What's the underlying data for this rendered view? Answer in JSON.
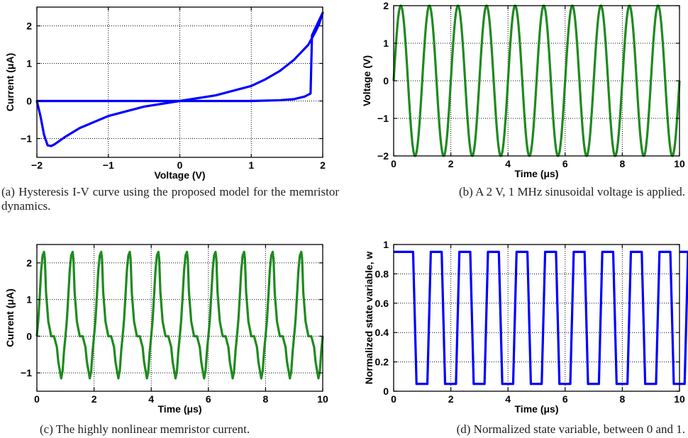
{
  "figure": {
    "captions": {
      "a": "(a) Hysteresis I-V curve using the proposed model for the memristor dynamics.",
      "b": "(b) A 2 V, 1 MHz sinusoidal voltage is applied.",
      "c": "(c) The highly nonlinear memristor current.",
      "d": "(d) Normalized state variable, between 0 and 1."
    }
  },
  "chart_data": [
    {
      "id": "a",
      "type": "line",
      "xlabel": "Voltage (V)",
      "ylabel": "Current (μA)",
      "xlim": [
        -2,
        2
      ],
      "ylim": [
        -1.5,
        2.5
      ],
      "xticks": [
        -2,
        -1,
        0,
        1,
        2
      ],
      "xtick_labels": [
        "−2",
        "−1",
        "0",
        "1",
        "2"
      ],
      "yticks": [
        -1,
        0,
        1,
        2
      ],
      "ytick_labels": [
        "−1",
        "0",
        "1",
        "2"
      ],
      "grid": true,
      "series_color": "#0000ff",
      "series": [
        {
          "x": [
            0,
            0.5,
            1.0,
            1.4,
            1.6,
            1.75,
            1.8,
            1.83,
            1.85,
            1.9,
            1.95,
            2.0,
            1.95,
            1.9,
            1.8,
            1.6,
            1.4,
            1.2,
            1.0,
            0.5,
            0,
            -0.5,
            -1.0,
            -1.4,
            -1.6,
            -1.75,
            -1.8,
            -1.85,
            -1.9,
            -1.95,
            -2.0,
            -1.9,
            -1.8,
            -1.5,
            -1.0,
            -0.5,
            0
          ],
          "y": [
            0,
            0.0,
            0.0,
            0.02,
            0.05,
            0.12,
            0.17,
            0.2,
            1.75,
            1.95,
            2.15,
            2.35,
            2.05,
            1.85,
            1.5,
            1.1,
            0.8,
            0.58,
            0.4,
            0.15,
            0,
            -0.15,
            -0.4,
            -0.72,
            -0.95,
            -1.15,
            -1.2,
            -1.18,
            -0.9,
            -0.4,
            0,
            0,
            0,
            0,
            0,
            0,
            0
          ]
        }
      ]
    },
    {
      "id": "b",
      "type": "line",
      "xlabel": "Time (μs)",
      "ylabel": "Voltage (V)",
      "xlim": [
        0,
        10
      ],
      "ylim": [
        -2,
        2
      ],
      "xticks": [
        0,
        2,
        4,
        6,
        8,
        10
      ],
      "xtick_labels": [
        "0",
        "2",
        "4",
        "6",
        "8",
        "10"
      ],
      "yticks": [
        -2,
        -1,
        0,
        1,
        2
      ],
      "ytick_labels": [
        "−2",
        "−1",
        "0",
        "1",
        "2"
      ],
      "grid": true,
      "series_color": "#1f8a1f",
      "series": [
        {
          "function": "sine",
          "amplitude": 2,
          "frequency_MHz": 1,
          "x_range": [
            0,
            10
          ]
        }
      ]
    },
    {
      "id": "c",
      "type": "line",
      "xlabel": "Time (μs)",
      "ylabel": "Current (μA)",
      "xlim": [
        0,
        10
      ],
      "ylim": [
        -1.5,
        2.5
      ],
      "xticks": [
        0,
        2,
        4,
        6,
        8,
        10
      ],
      "xtick_labels": [
        "0",
        "2",
        "4",
        "6",
        "8",
        "10"
      ],
      "yticks": [
        -1,
        0,
        1,
        2
      ],
      "ytick_labels": [
        "−1",
        "0",
        "1",
        "2"
      ],
      "grid": true,
      "series_color": "#1f8a1f",
      "series": [
        {
          "period_x": [
            0,
            0.05,
            0.1,
            0.15,
            0.2,
            0.25,
            0.28,
            0.32,
            0.4,
            0.5,
            0.6,
            0.7,
            0.75,
            0.85,
            0.9,
            0.95,
            1.0
          ],
          "period_y": [
            0,
            0.45,
            1.1,
            1.8,
            2.2,
            2.3,
            2.1,
            1.2,
            0.4,
            0,
            0,
            -0.3,
            -0.7,
            -1.15,
            -0.95,
            -0.4,
            0
          ],
          "repeat_from": 0,
          "repeat_to": 10
        }
      ]
    },
    {
      "id": "d",
      "type": "line",
      "xlabel": "Time (μs)",
      "ylabel": "Normalized state variable, w",
      "xlim": [
        0,
        10
      ],
      "ylim": [
        0,
        1
      ],
      "xticks": [
        0,
        2,
        4,
        6,
        8,
        10
      ],
      "xtick_labels": [
        "0",
        "2",
        "4",
        "6",
        "8",
        "10"
      ],
      "yticks": [
        0,
        0.2,
        0.4,
        0.6,
        0.8,
        1
      ],
      "ytick_labels": [
        "0",
        "0.2",
        "0.4",
        "0.6",
        "0.8",
        "1"
      ],
      "grid": true,
      "series_color": "#0000ff",
      "series": [
        {
          "high": 0.95,
          "low": 0.05,
          "period_x": [
            0,
            0.68,
            0.8,
            1.18,
            1.3,
            1.68
          ],
          "period_y": [
            0.95,
            0.95,
            0.05,
            0.05,
            0.95,
            0.95
          ],
          "repeat_from": 0,
          "repeat_to": 10
        }
      ]
    }
  ]
}
